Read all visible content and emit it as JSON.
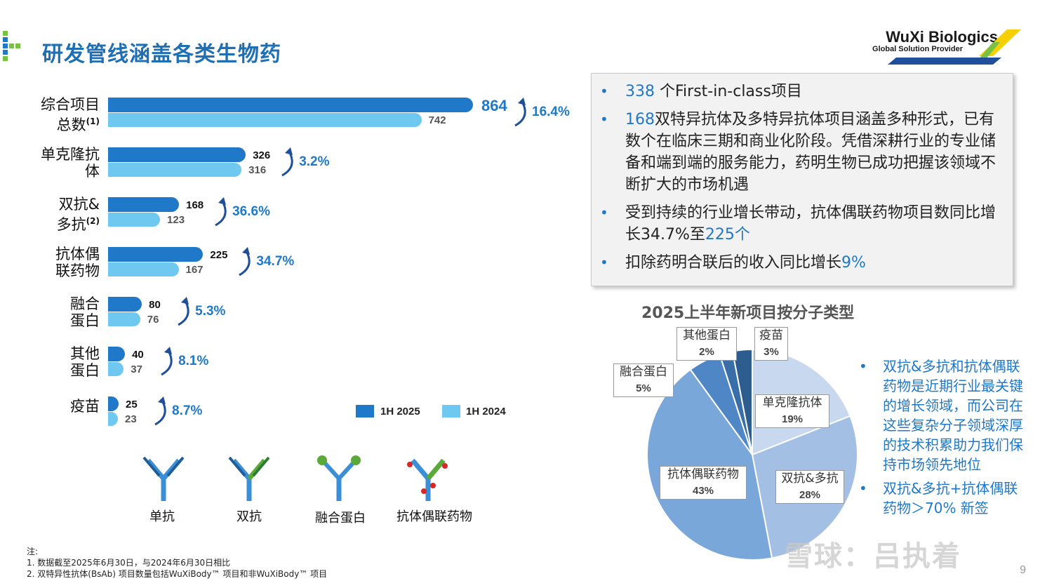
{
  "header": {
    "title": "研发管线涵盖各类生物药",
    "logo_main": "WuXi Biologics",
    "logo_sub": "Global Solution Provider"
  },
  "colors": {
    "bar_2025": "#1f78c8",
    "bar_2024": "#6fc8f0",
    "accent": "#1f78c8"
  },
  "chart_data": [
    {
      "type": "bar",
      "orientation": "horizontal",
      "categories": [
        {
          "line1": "综合项目",
          "line2": "总数",
          "note": "(1)"
        },
        {
          "line1": "单克隆抗",
          "line2": "体",
          "note": ""
        },
        {
          "line1": "双抗&",
          "line2": "多抗",
          "note": "(2)"
        },
        {
          "line1": "抗体偶",
          "line2": "联药物",
          "note": ""
        },
        {
          "line1": "融合",
          "line2": "蛋白",
          "note": ""
        },
        {
          "line1": "其他",
          "line2": "蛋白",
          "note": ""
        },
        {
          "line1": "疫苗",
          "line2": "",
          "note": ""
        }
      ],
      "series": [
        {
          "name": "1H 2025",
          "values": [
            864,
            326,
            168,
            225,
            80,
            40,
            25
          ]
        },
        {
          "name": "1H 2024",
          "values": [
            742,
            316,
            123,
            167,
            76,
            37,
            23
          ]
        }
      ],
      "growth_labels": [
        "16.4%",
        "3.2%",
        "36.6%",
        "34.7%",
        "5.3%",
        "8.1%",
        "8.7%"
      ]
    },
    {
      "type": "pie",
      "title": "2025上半年新项目按分子类型",
      "slices": [
        {
          "label": "单克隆抗体",
          "value": 19,
          "pct": "19%",
          "color": "#c8d8ee"
        },
        {
          "label": "双抗&多抗",
          "value": 28,
          "pct": "28%",
          "color": "#a3bfe3"
        },
        {
          "label": "抗体偶联药物",
          "value": 43,
          "pct": "43%",
          "color": "#7aa7d9"
        },
        {
          "label": "融合蛋白",
          "value": 5,
          "pct": "5%",
          "color": "#4f86c6"
        },
        {
          "label": "其他蛋白",
          "value": 2,
          "pct": "2%",
          "color": "#3a6ea8"
        },
        {
          "label": "疫苗",
          "value": 3,
          "pct": "3%",
          "color": "#2d5c8f"
        }
      ]
    }
  ],
  "highlights": [
    {
      "hl": "338",
      "text": " 个First-in-class项目",
      "tail": ""
    },
    {
      "hl": "168",
      "text": "双特异抗体及多特异抗体项目涵盖多种形式，已有数个在临床三期和商业化阶段。凭借深耕行业的专业储备和端到端的服务能力，药明生物已成功把握该领域不断扩大的市场机遇",
      "tail": ""
    },
    {
      "hl": "",
      "text": "受到持续的行业增长带动，抗体偶联药物项目数同比增长34.7%至",
      "tail": "225个"
    },
    {
      "hl": "",
      "text": "扣除药明合联后的收入同比增长",
      "tail": "9%"
    }
  ],
  "side_notes": [
    "双抗&多抗和抗体偶联药物是近期行业最关键的增长领域，而公司在这些复杂分子领域深厚的技术积累助力我们保持市场领先地位",
    "双抗&多抗+抗体偶联药物＞70% 新签"
  ],
  "molecules": [
    "单抗",
    "双抗",
    "融合蛋白",
    "抗体偶联药物"
  ],
  "notes": {
    "head": "注:",
    "items": [
      "1. 数据截至2025年6月30日，与2024年6月30日相比",
      "2. 双特异性抗体(BsAb) 项目数量包括WuXiBody™ 项目和非WuXiBody™ 项目"
    ]
  },
  "watermark": "雪球：吕执着",
  "page_number": "9"
}
